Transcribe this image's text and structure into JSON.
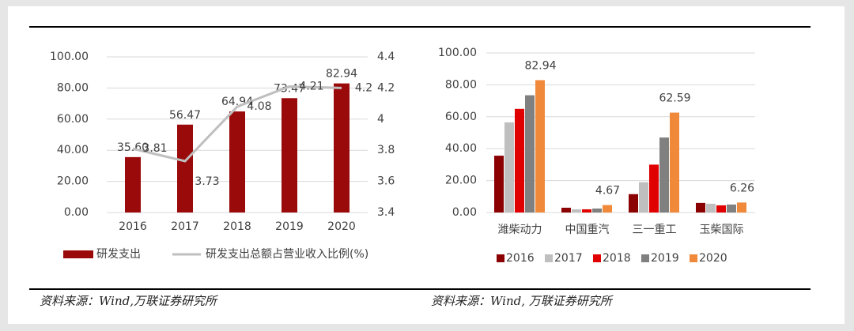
{
  "chart_data": [
    {
      "type": "combo",
      "categories": [
        "2016",
        "2017",
        "2018",
        "2019",
        "2020"
      ],
      "series": [
        {
          "name": "研发支出",
          "type": "bar",
          "color": "#9b0a0a",
          "values": [
            35.6,
            56.47,
            64.94,
            73.47,
            82.94
          ],
          "value_labels": [
            "35.60",
            "56.47",
            "64.94",
            "73.47",
            "82.94"
          ]
        },
        {
          "name": "研发支出总额占营业收入比例(%)",
          "type": "line",
          "axis": "y2",
          "color": "#bfbfbf",
          "values": [
            3.81,
            3.73,
            4.08,
            4.21,
            4.2
          ]
        }
      ],
      "ylim": [
        0,
        100
      ],
      "yticks": [
        {
          "value": 0,
          "label": "0.00"
        },
        {
          "value": 20,
          "label": "20.00"
        },
        {
          "value": 40,
          "label": "40.00"
        },
        {
          "value": 60,
          "label": "60.00"
        },
        {
          "value": 80,
          "label": "80.00"
        },
        {
          "value": 100,
          "label": "100.00"
        }
      ],
      "y2lim": [
        3.4,
        4.4
      ],
      "y2ticks": [
        3.4,
        3.6,
        3.8,
        4,
        4.2,
        4.4
      ],
      "grid": true,
      "legend": "bottom",
      "source": "资料来源：Wind,万联证券研究所"
    },
    {
      "type": "bar",
      "categories": [
        "潍柴动力",
        "中国重汽",
        "三一重工",
        "玉柴国际"
      ],
      "series": [
        {
          "name": "2016",
          "color": "#8b0000",
          "values": [
            35.6,
            3,
            11.5,
            6
          ]
        },
        {
          "name": "2017",
          "color": "#bfbfbf",
          "values": [
            56.47,
            2,
            19,
            5.5
          ]
        },
        {
          "name": "2018",
          "color": "#e00000",
          "values": [
            64.94,
            2,
            30,
            4.5
          ]
        },
        {
          "name": "2019",
          "color": "#808080",
          "values": [
            73.47,
            2.5,
            47,
            5
          ]
        },
        {
          "name": "2020",
          "color": "#f08a3a",
          "values": [
            82.94,
            4.67,
            62.59,
            6.26
          ],
          "data_labels": true
        }
      ],
      "ylim": [
        0,
        100
      ],
      "yticks": [
        {
          "value": 0,
          "label": "0.00"
        },
        {
          "value": 20,
          "label": "20.00"
        },
        {
          "value": 40,
          "label": "40.00"
        },
        {
          "value": 60,
          "label": "60.00"
        },
        {
          "value": 80,
          "label": "80.00"
        },
        {
          "value": 100,
          "label": "100.00"
        }
      ],
      "grid": true,
      "legend": "bottom",
      "source": "资料来源：Wind, 万联证券研究所"
    }
  ]
}
